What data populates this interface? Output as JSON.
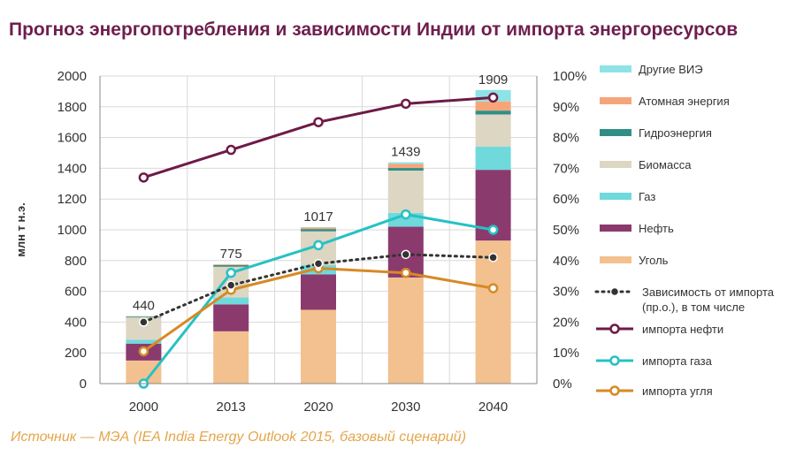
{
  "title": "Прогноз энергопотребления и зависимости Индии от импорта энергоресурсов",
  "source": "Источник — МЭА (IEA India Energy Outlook 2015, базовый сценарий)",
  "chart_data": {
    "type": "bar",
    "stacked": true,
    "categories": [
      "2000",
      "2013",
      "2020",
      "2030",
      "2040"
    ],
    "ylabel": "млн т н.э.",
    "ylim": [
      0,
      2000
    ],
    "yticks": [
      "0",
      "200",
      "400",
      "600",
      "800",
      "1000",
      "1200",
      "1400",
      "1600",
      "1800",
      "2000"
    ],
    "y2lim": [
      0,
      100
    ],
    "y2ticks": [
      "0%",
      "10%",
      "20%",
      "30%",
      "40%",
      "50%",
      "60%",
      "70%",
      "80%",
      "90%",
      "100%"
    ],
    "totals": [
      "440",
      "775",
      "1017",
      "1439",
      "1909"
    ],
    "grid": true,
    "legend_position": "right",
    "series": [
      {
        "name": "Уголь",
        "color": "#f2c18f",
        "values": [
          150,
          340,
          480,
          690,
          930
        ]
      },
      {
        "name": "Нефть",
        "color": "#8b3a6e",
        "values": [
          110,
          175,
          230,
          330,
          460
        ]
      },
      {
        "name": "Газ",
        "color": "#6fd9dc",
        "values": [
          25,
          45,
          60,
          90,
          150
        ]
      },
      {
        "name": "Биомасса",
        "color": "#dcd6c3",
        "values": [
          145,
          200,
          220,
          275,
          210
        ]
      },
      {
        "name": "Гидроэнергия",
        "color": "#2f8f87",
        "values": [
          5,
          10,
          15,
          17,
          25
        ]
      },
      {
        "name": "Атомная энергия",
        "color": "#f6a57a",
        "values": [
          3,
          5,
          10,
          27,
          60
        ]
      },
      {
        "name": "Другие ВИЭ",
        "color": "#8de3e6",
        "values": [
          2,
          0,
          2,
          10,
          74
        ]
      }
    ],
    "lines": [
      {
        "name": "импорта нефти",
        "color": "#6e1a46",
        "style": "solid",
        "values": [
          67,
          76,
          85,
          91,
          93
        ]
      },
      {
        "name": "импорта газа",
        "color": "#26c1c4",
        "style": "solid",
        "values": [
          0,
          36,
          45,
          55,
          50
        ]
      },
      {
        "name": "импорта угля",
        "color": "#d68a25",
        "style": "solid",
        "values": [
          10.5,
          30.5,
          37.5,
          36,
          31
        ]
      },
      {
        "name": "Зависимость от импорта (пр.о.), в том числе",
        "color": "#333333",
        "style": "dotted",
        "values": [
          20,
          32,
          39,
          42,
          41
        ]
      }
    ]
  }
}
